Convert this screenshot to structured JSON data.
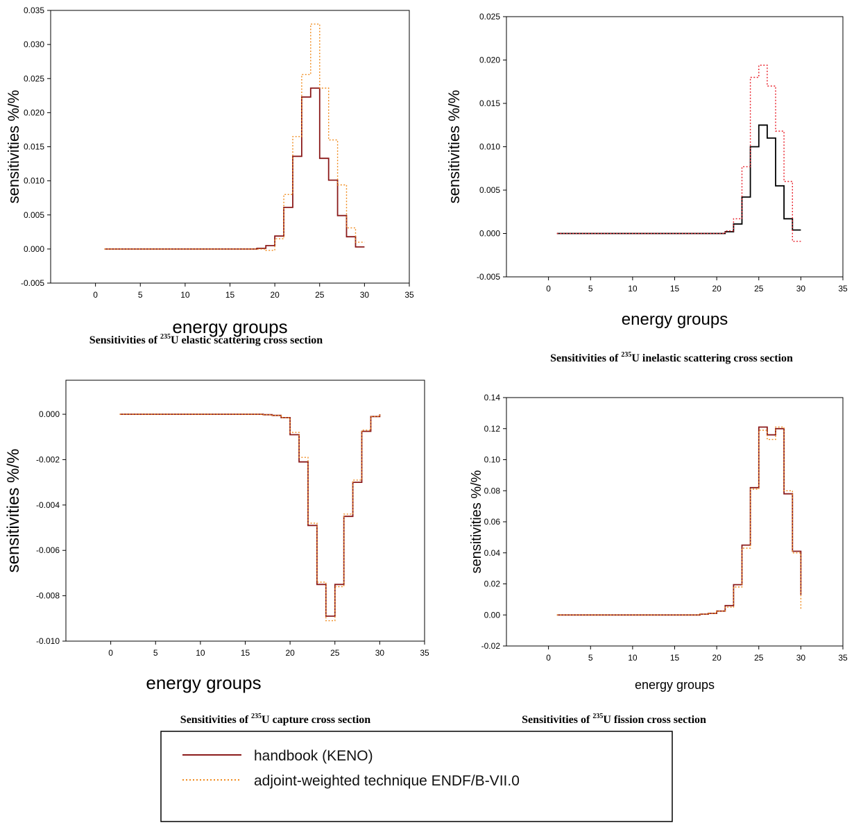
{
  "chart_data": [
    {
      "type": "line",
      "step": true,
      "caption": {
        "prefix": "Sensitivities of ",
        "isotope_mass": "235",
        "suffix": "U elastic scattering cross section"
      },
      "xlabel": "energy groups",
      "ylabel": "sensitivities %/%",
      "xlim": [
        -5,
        35
      ],
      "ylim": [
        -0.005,
        0.035
      ],
      "xticks": [
        0,
        5,
        10,
        15,
        20,
        25,
        30,
        35
      ],
      "yticks": [
        -0.005,
        0.0,
        0.005,
        0.01,
        0.015,
        0.02,
        0.025,
        0.03,
        0.035
      ],
      "ytick_decimals": 3,
      "x": [
        1,
        2,
        3,
        4,
        5,
        6,
        7,
        8,
        9,
        10,
        11,
        12,
        13,
        14,
        15,
        16,
        17,
        18,
        19,
        20,
        21,
        22,
        23,
        24,
        25,
        26,
        27,
        28,
        29,
        30
      ],
      "series": [
        {
          "name": "handbook (KENO)",
          "color": "#8b1a1a",
          "dash": "solid",
          "values": [
            0,
            0,
            0,
            0,
            0,
            0,
            0,
            0,
            0,
            0,
            0,
            0,
            0,
            0,
            0,
            0,
            0,
            0.0001,
            0.0005,
            0.0019,
            0.0061,
            0.0136,
            0.0223,
            0.0236,
            0.0133,
            0.0101,
            0.0049,
            0.0018,
            0.0003,
            0.0003
          ]
        },
        {
          "name": "adjoint-weighted technique ENDF/B-VII.0",
          "color": "#f08a1c",
          "dash": "dotted",
          "values": [
            0,
            0,
            0,
            0,
            0,
            0,
            0,
            0,
            0,
            0,
            0,
            0,
            0,
            0,
            0,
            0,
            0,
            0,
            -0.0002,
            0.0015,
            0.008,
            0.0165,
            0.0256,
            0.033,
            0.0236,
            0.016,
            0.0094,
            0.0031,
            0.001,
            0.001
          ]
        }
      ]
    },
    {
      "type": "line",
      "step": true,
      "caption": {
        "prefix": "Sensitivities of ",
        "isotope_mass": "235",
        "suffix": "U inelastic scattering cross section"
      },
      "xlabel": "energy groups",
      "ylabel": "sensitivities %/%",
      "xlim": [
        -5,
        35
      ],
      "ylim": [
        -0.005,
        0.025
      ],
      "xticks": [
        0,
        5,
        10,
        15,
        20,
        25,
        30,
        35
      ],
      "yticks": [
        -0.005,
        0.0,
        0.005,
        0.01,
        0.015,
        0.02,
        0.025
      ],
      "ytick_decimals": 3,
      "x": [
        1,
        2,
        3,
        4,
        5,
        6,
        7,
        8,
        9,
        10,
        11,
        12,
        13,
        14,
        15,
        16,
        17,
        18,
        19,
        20,
        21,
        22,
        23,
        24,
        25,
        26,
        27,
        28,
        29,
        30
      ],
      "series": [
        {
          "name": "handbook (KENO)",
          "color": "#000000",
          "dash": "solid",
          "values": [
            0,
            0,
            0,
            0,
            0,
            0,
            0,
            0,
            0,
            0,
            0,
            0,
            0,
            0,
            0,
            0,
            0,
            0,
            0,
            0,
            0.0002,
            0.0011,
            0.0042,
            0.01,
            0.0125,
            0.011,
            0.0055,
            0.0017,
            0.0004,
            0.0004
          ]
        },
        {
          "name": "adjoint-weighted technique ENDF/B-VII.0",
          "color": "#e8202a",
          "dash": "dotted",
          "values": [
            0,
            0,
            0,
            0,
            0,
            0,
            0,
            0,
            0,
            0,
            0,
            0,
            0,
            0,
            0,
            0,
            0,
            0,
            0,
            0,
            0.0003,
            0.0017,
            0.0077,
            0.018,
            0.0194,
            0.017,
            0.0118,
            0.006,
            -0.0009,
            -0.0009
          ]
        }
      ]
    },
    {
      "type": "line",
      "step": true,
      "caption": {
        "prefix": "Sensitivities of ",
        "isotope_mass": "235",
        "suffix": "U capture cross section"
      },
      "xlabel": "energy groups",
      "ylabel": "sensitivities %/%",
      "xlim": [
        -5,
        35
      ],
      "ylim": [
        -0.01,
        0.0015
      ],
      "xticks": [
        0,
        5,
        10,
        15,
        20,
        25,
        30,
        35
      ],
      "yticks": [
        -0.01,
        -0.008,
        -0.006,
        -0.004,
        -0.002,
        0.0
      ],
      "ytick_decimals": 3,
      "x": [
        1,
        2,
        3,
        4,
        5,
        6,
        7,
        8,
        9,
        10,
        11,
        12,
        13,
        14,
        15,
        16,
        17,
        18,
        19,
        20,
        21,
        22,
        23,
        24,
        25,
        26,
        27,
        28,
        29,
        30
      ],
      "series": [
        {
          "name": "handbook (KENO)",
          "color": "#8b1a1a",
          "dash": "solid",
          "values": [
            0,
            0,
            0,
            0,
            0,
            0,
            0,
            0,
            0,
            0,
            0,
            0,
            0,
            0,
            0,
            0,
            -2e-05,
            -5e-05,
            -0.00015,
            -0.0009,
            -0.0021,
            -0.0049,
            -0.0075,
            -0.0089,
            -0.0075,
            -0.0045,
            -0.003,
            -0.00075,
            -0.0001,
            0
          ]
        },
        {
          "name": "adjoint-weighted technique ENDF/B-VII.0",
          "color": "#f08a1c",
          "dash": "dotted",
          "values": [
            0,
            0,
            0,
            0,
            0,
            0,
            0,
            0,
            0,
            0,
            0,
            0,
            0,
            0,
            0,
            0,
            -2e-05,
            -5e-05,
            -0.00015,
            -0.0008,
            -0.0019,
            -0.0048,
            -0.0074,
            -0.0091,
            -0.0076,
            -0.0044,
            -0.0029,
            -0.0007,
            -0.0001,
            0
          ]
        }
      ]
    },
    {
      "type": "line",
      "step": true,
      "caption": {
        "prefix": "Sensitivities of ",
        "isotope_mass": "235",
        "suffix": "U fission cross section"
      },
      "xlabel": "energy groups",
      "ylabel": "sensitivities %/%",
      "xlim": [
        -5,
        35
      ],
      "ylim": [
        -0.02,
        0.14
      ],
      "xticks": [
        0,
        5,
        10,
        15,
        20,
        25,
        30,
        35
      ],
      "yticks": [
        -0.02,
        0.0,
        0.02,
        0.04,
        0.06,
        0.08,
        0.1,
        0.12,
        0.14
      ],
      "ytick_decimals": 2,
      "x": [
        1,
        2,
        3,
        4,
        5,
        6,
        7,
        8,
        9,
        10,
        11,
        12,
        13,
        14,
        15,
        16,
        17,
        18,
        19,
        20,
        21,
        22,
        23,
        24,
        25,
        26,
        27,
        28,
        29,
        30
      ],
      "series": [
        {
          "name": "handbook (KENO)",
          "color": "#8b1a1a",
          "dash": "solid",
          "values": [
            0,
            0,
            0,
            0,
            0,
            0,
            0,
            0,
            0,
            0,
            0,
            0,
            0,
            0,
            0,
            0,
            0,
            0.0005,
            0.001,
            0.0025,
            0.006,
            0.0195,
            0.045,
            0.082,
            0.121,
            0.116,
            0.12,
            0.078,
            0.041,
            0.013
          ]
        },
        {
          "name": "adjoint-weighted technique ENDF/B-VII.0",
          "color": "#f08a1c",
          "dash": "dotted",
          "values": [
            0,
            0,
            0,
            0,
            0,
            0,
            0,
            0,
            0,
            0,
            0,
            0,
            0,
            0,
            0,
            0,
            0,
            0.0005,
            0.001,
            0.0025,
            0.005,
            0.018,
            0.043,
            0.081,
            0.119,
            0.113,
            0.121,
            0.08,
            0.04,
            0.004
          ]
        }
      ]
    }
  ],
  "legend": {
    "entries": [
      {
        "label": "handbook (KENO)",
        "color": "#8b1a1a",
        "dash": "solid"
      },
      {
        "label": "adjoint-weighted technique ENDF/B-VII.0",
        "color": "#f08a1c",
        "dash": "dotted"
      }
    ]
  }
}
